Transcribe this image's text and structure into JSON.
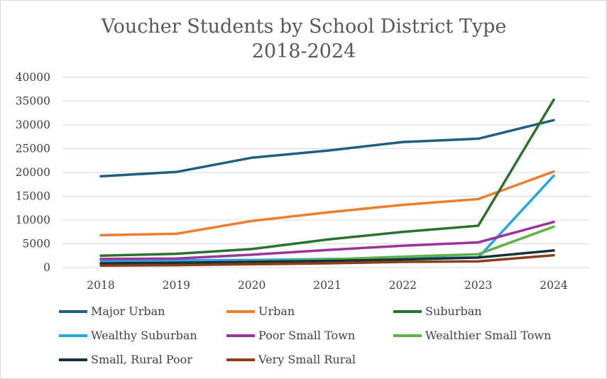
{
  "chart_data": {
    "type": "line",
    "title": [
      "Voucher Students by School District Type",
      "2018-2024"
    ],
    "xlabel": "",
    "ylabel": "",
    "categories": [
      "2018",
      "2019",
      "2020",
      "2021",
      "2022",
      "2023",
      "2024"
    ],
    "ylim": [
      0,
      40000
    ],
    "yticks": [
      0,
      5000,
      10000,
      15000,
      20000,
      25000,
      30000,
      35000,
      40000
    ],
    "ytick_labels": [
      "0",
      "5000",
      "10000",
      "15000",
      "20000",
      "25000",
      "30000",
      "35000",
      "40000"
    ],
    "grid": "horizontal",
    "legend_position": "bottom",
    "series": [
      {
        "name": "Major Urban",
        "color": "#1f5f7f",
        "values": [
          19200,
          20100,
          23100,
          24600,
          26400,
          27100,
          31000
        ]
      },
      {
        "name": "Urban",
        "color": "#ed7d31",
        "values": [
          6800,
          7100,
          9800,
          11600,
          13200,
          14400,
          20200
        ]
      },
      {
        "name": "Suburban",
        "color": "#2a7230",
        "values": [
          2500,
          2900,
          3900,
          5900,
          7500,
          8800,
          35300
        ]
      },
      {
        "name": "Wealthy Suburban",
        "color": "#27a7dd",
        "values": [
          1400,
          1500,
          1600,
          1800,
          2000,
          2100,
          19300
        ]
      },
      {
        "name": "Poor Small Town",
        "color": "#9c349c",
        "values": [
          1800,
          1900,
          2700,
          3700,
          4600,
          5300,
          9600
        ]
      },
      {
        "name": "Wealthier Small Town",
        "color": "#5fb246",
        "values": [
          700,
          800,
          1300,
          1700,
          2300,
          2800,
          8600
        ]
      },
      {
        "name": "Small, Rural Poor",
        "color": "#17303d",
        "values": [
          900,
          1000,
          1200,
          1400,
          1700,
          2100,
          3600
        ]
      },
      {
        "name": "Very Small Rural",
        "color": "#8b3d14",
        "values": [
          400,
          500,
          700,
          900,
          1200,
          1300,
          2600
        ]
      }
    ]
  }
}
